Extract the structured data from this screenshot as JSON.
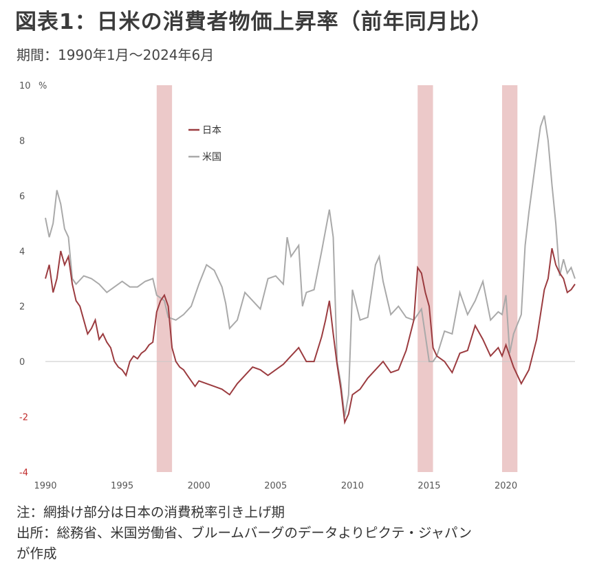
{
  "title": "図表1：日米の消費者物価上昇率（前年同月比）",
  "subtitle": "期間：1990年1月～2024年6月",
  "notes": [
    "注：網掛け部分は日本の消費税率引き上げ期",
    "出所：総務省、米国労働省、ブルームバーグのデータよりピクテ・ジャパン",
    "が作成"
  ],
  "chart_data": {
    "type": "line",
    "y_unit": "%",
    "ylim": [
      -4,
      10
    ],
    "y_ticks": [
      -4,
      -2,
      0,
      2,
      4,
      6,
      8,
      10
    ],
    "xlim": [
      1990.0,
      2024.5
    ],
    "x_ticks": [
      1990,
      1995,
      2000,
      2005,
      2010,
      2015,
      2020
    ],
    "grid": false,
    "legend_position": "top-left",
    "shaded_periods": [
      [
        1997.25,
        1998.25
      ],
      [
        2014.25,
        2015.25
      ],
      [
        2019.75,
        2020.75
      ]
    ],
    "colors": {
      "japan": "#9b3b3f",
      "us": "#a9a9a9",
      "shade": "#ecc9c9",
      "zero_line": "#c8c8c8"
    },
    "series": [
      {
        "name": "日本",
        "x": [
          1990.0,
          1990.25,
          1990.5,
          1990.75,
          1991.0,
          1991.25,
          1991.5,
          1991.75,
          1992.0,
          1992.25,
          1992.5,
          1992.75,
          1993.0,
          1993.25,
          1993.5,
          1993.75,
          1994.0,
          1994.25,
          1994.5,
          1994.75,
          1995.0,
          1995.25,
          1995.5,
          1995.75,
          1996.0,
          1996.25,
          1996.5,
          1996.75,
          1997.0,
          1997.25,
          1997.5,
          1997.75,
          1998.0,
          1998.25,
          1998.5,
          1998.75,
          1999.0,
          1999.25,
          1999.5,
          1999.75,
          2000.0,
          2000.5,
          2001.0,
          2001.5,
          2002.0,
          2002.5,
          2003.0,
          2003.5,
          2004.0,
          2004.5,
          2005.0,
          2005.5,
          2006.0,
          2006.5,
          2007.0,
          2007.5,
          2008.0,
          2008.25,
          2008.5,
          2008.75,
          2009.0,
          2009.25,
          2009.5,
          2009.75,
          2010.0,
          2010.5,
          2011.0,
          2011.5,
          2012.0,
          2012.5,
          2013.0,
          2013.5,
          2014.0,
          2014.25,
          2014.5,
          2014.75,
          2015.0,
          2015.25,
          2015.5,
          2016.0,
          2016.5,
          2017.0,
          2017.5,
          2018.0,
          2018.5,
          2019.0,
          2019.5,
          2019.75,
          2020.0,
          2020.5,
          2021.0,
          2021.5,
          2022.0,
          2022.5,
          2022.75,
          2023.0,
          2023.25,
          2023.5,
          2023.75,
          2024.0,
          2024.25,
          2024.5
        ],
        "values": [
          3.0,
          3.5,
          2.5,
          3.0,
          4.0,
          3.5,
          3.8,
          2.8,
          2.2,
          2.0,
          1.5,
          1.0,
          1.2,
          1.5,
          0.8,
          1.0,
          0.7,
          0.5,
          0.0,
          -0.2,
          -0.3,
          -0.5,
          0.0,
          0.2,
          0.1,
          0.3,
          0.4,
          0.6,
          0.7,
          1.8,
          2.2,
          2.4,
          2.0,
          0.5,
          0.0,
          -0.2,
          -0.3,
          -0.5,
          -0.7,
          -0.9,
          -0.7,
          -0.8,
          -0.9,
          -1.0,
          -1.2,
          -0.8,
          -0.5,
          -0.2,
          -0.3,
          -0.5,
          -0.3,
          -0.1,
          0.2,
          0.5,
          0.0,
          0.0,
          0.9,
          1.5,
          2.2,
          1.0,
          -0.1,
          -1.0,
          -2.2,
          -1.9,
          -1.2,
          -1.0,
          -0.6,
          -0.3,
          0.0,
          -0.4,
          -0.3,
          0.4,
          1.5,
          3.4,
          3.2,
          2.5,
          2.0,
          0.5,
          0.2,
          0.0,
          -0.4,
          0.3,
          0.4,
          1.3,
          0.8,
          0.2,
          0.5,
          0.2,
          0.6,
          -0.2,
          -0.8,
          -0.3,
          0.8,
          2.6,
          3.0,
          4.1,
          3.5,
          3.2,
          3.0,
          2.5,
          2.6,
          2.8
        ]
      },
      {
        "name": "米国",
        "x": [
          1990.0,
          1990.25,
          1990.5,
          1990.75,
          1991.0,
          1991.25,
          1991.5,
          1991.75,
          1992.0,
          1992.5,
          1993.0,
          1993.5,
          1994.0,
          1994.5,
          1995.0,
          1995.5,
          1996.0,
          1996.5,
          1997.0,
          1997.25,
          1997.5,
          1997.75,
          1998.0,
          1998.5,
          1999.0,
          1999.5,
          2000.0,
          2000.5,
          2001.0,
          2001.5,
          2001.75,
          2002.0,
          2002.5,
          2003.0,
          2003.5,
          2004.0,
          2004.5,
          2005.0,
          2005.5,
          2005.75,
          2006.0,
          2006.5,
          2006.75,
          2007.0,
          2007.5,
          2008.0,
          2008.5,
          2008.75,
          2009.0,
          2009.25,
          2009.5,
          2009.75,
          2010.0,
          2010.5,
          2011.0,
          2011.5,
          2011.75,
          2012.0,
          2012.5,
          2013.0,
          2013.5,
          2014.0,
          2014.5,
          2015.0,
          2015.25,
          2015.5,
          2016.0,
          2016.5,
          2017.0,
          2017.5,
          2018.0,
          2018.5,
          2019.0,
          2019.5,
          2019.75,
          2020.0,
          2020.25,
          2020.5,
          2021.0,
          2021.25,
          2021.5,
          2022.0,
          2022.25,
          2022.5,
          2022.75,
          2023.0,
          2023.25,
          2023.5,
          2023.75,
          2024.0,
          2024.25,
          2024.5
        ],
        "values": [
          5.2,
          4.5,
          5.0,
          6.2,
          5.7,
          4.8,
          4.5,
          3.0,
          2.8,
          3.1,
          3.0,
          2.8,
          2.5,
          2.7,
          2.9,
          2.7,
          2.7,
          2.9,
          3.0,
          2.4,
          2.3,
          2.2,
          1.6,
          1.5,
          1.7,
          2.0,
          2.8,
          3.5,
          3.3,
          2.7,
          2.1,
          1.2,
          1.5,
          2.5,
          2.2,
          1.9,
          3.0,
          3.1,
          2.8,
          4.5,
          3.8,
          4.2,
          2.0,
          2.5,
          2.6,
          4.0,
          5.5,
          4.5,
          0.0,
          -0.8,
          -2.0,
          -1.2,
          2.6,
          1.5,
          1.6,
          3.5,
          3.8,
          2.9,
          1.7,
          2.0,
          1.6,
          1.5,
          1.9,
          0.0,
          0.0,
          0.2,
          1.1,
          1.0,
          2.5,
          1.7,
          2.2,
          2.9,
          1.5,
          1.8,
          1.7,
          2.4,
          0.3,
          1.0,
          1.7,
          4.2,
          5.4,
          7.5,
          8.5,
          8.9,
          8.0,
          6.4,
          5.0,
          3.1,
          3.7,
          3.2,
          3.4,
          3.0
        ]
      }
    ]
  }
}
